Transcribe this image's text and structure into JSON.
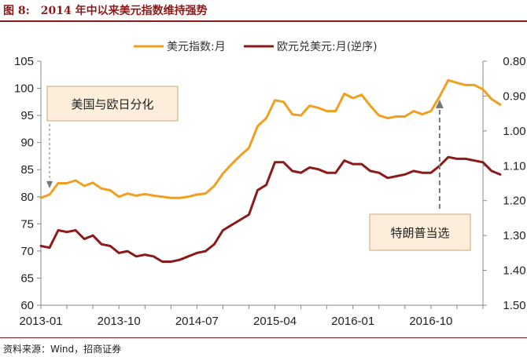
{
  "header": {
    "figure_no": "图 8:",
    "title": "2014 年中以来美元指数维持强势"
  },
  "source": "资料来源：Wind，招商证券",
  "colors": {
    "dxy": "#F0A020",
    "eurusd": "#8B1A1A",
    "axis": "#888888",
    "annotation_fill": "#FDEEDB",
    "title": "#8B1A1A"
  },
  "chart_data": {
    "type": "line",
    "legend": {
      "position": "top",
      "items": [
        "美元指数:月",
        "欧元兑美元:月(逆序)"
      ]
    },
    "x_ticks": [
      "2013-01",
      "2013-10",
      "2014-07",
      "2015-04",
      "2016-01",
      "2016-10"
    ],
    "x_start": "2013-01",
    "x_end": "2017-04",
    "y_left": {
      "lim": [
        60,
        105
      ],
      "ticks": [
        "105",
        "100",
        "95",
        "90",
        "85",
        "80",
        "75",
        "70",
        "65",
        "60"
      ]
    },
    "y_right": {
      "lim": [
        1.5,
        0.8
      ],
      "inverted": true,
      "ticks": [
        "0.80",
        "0.90",
        "1.00",
        "1.10",
        "1.20",
        "1.30",
        "1.40",
        "1.50"
      ]
    },
    "grid": false,
    "series": [
      {
        "name": "美元指数:月",
        "axis": "left",
        "values": [
          79.8,
          80.4,
          82.5,
          82.5,
          83.0,
          82.0,
          82.6,
          81.5,
          81.2,
          80.0,
          80.6,
          80.2,
          80.5,
          80.2,
          80.0,
          79.8,
          79.8,
          80.0,
          80.4,
          80.6,
          82.0,
          84.3,
          86.0,
          87.6,
          89.0,
          93.0,
          94.5,
          97.8,
          97.5,
          95.2,
          95.0,
          96.8,
          96.4,
          95.8,
          95.8,
          99.0,
          98.2,
          98.8,
          96.8,
          95.0,
          94.5,
          94.8,
          94.8,
          95.8,
          95.2,
          95.8,
          98.5,
          101.5,
          101.0,
          100.6,
          100.6,
          99.8,
          98.0,
          97.0
        ]
      },
      {
        "name": "欧元兑美元:月(逆序)",
        "axis": "right",
        "values": [
          1.33,
          1.335,
          1.285,
          1.29,
          1.285,
          1.31,
          1.3,
          1.325,
          1.33,
          1.35,
          1.345,
          1.36,
          1.355,
          1.36,
          1.375,
          1.375,
          1.37,
          1.36,
          1.35,
          1.345,
          1.325,
          1.285,
          1.27,
          1.255,
          1.24,
          1.17,
          1.155,
          1.09,
          1.09,
          1.115,
          1.12,
          1.105,
          1.11,
          1.12,
          1.12,
          1.085,
          1.095,
          1.095,
          1.115,
          1.12,
          1.135,
          1.13,
          1.125,
          1.115,
          1.12,
          1.12,
          1.1,
          1.075,
          1.08,
          1.08,
          1.085,
          1.09,
          1.115,
          1.125
        ]
      }
    ],
    "annotations": [
      {
        "text": "美国与欧日分化",
        "target": "2013-02"
      },
      {
        "text": "特朗普当选",
        "target": "2016-11"
      }
    ]
  }
}
